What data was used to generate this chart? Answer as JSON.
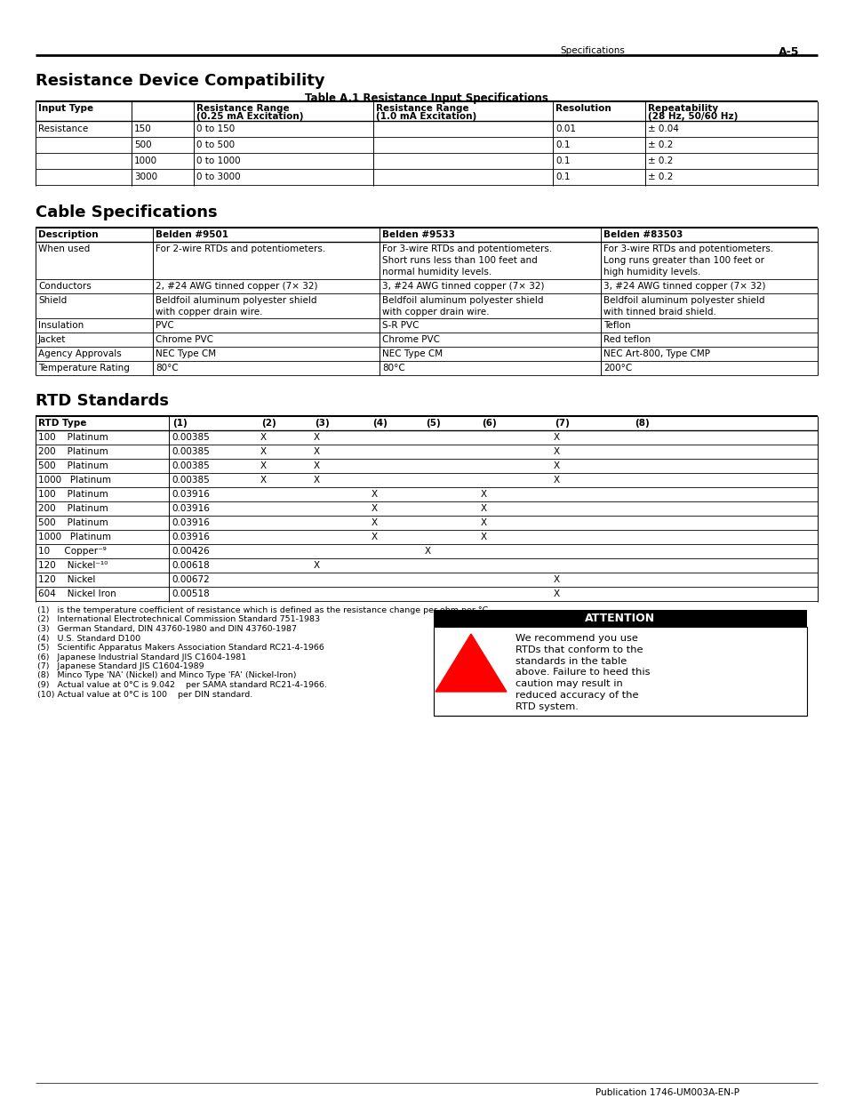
{
  "page_header_left": "Specifications",
  "page_header_right": "A-5",
  "section1_title": "Resistance Device Compatibility",
  "table1_title": "Table A.1 Resistance Input Specifications",
  "section2_title": "Cable Specifications",
  "section3_title": "RTD Standards",
  "table1_headers_row1": [
    "Input Type",
    "",
    "Resistance Range",
    "Resistance Range",
    "Resolution",
    "Repeatability"
  ],
  "table1_headers_row2": [
    "",
    "",
    "(0.25 mA Excitation)",
    "(1.0 mA Excitation)",
    "",
    "(28 Hz, 50/60 Hz)"
  ],
  "table1_rows": [
    [
      "Resistance",
      "150",
      "0 to 150",
      "",
      "0.01",
      "± 0.04"
    ],
    [
      "",
      "500",
      "0 to 500",
      "",
      "0.1",
      "± 0.2"
    ],
    [
      "",
      "1000",
      "0 to 1000",
      "",
      "0.1",
      "± 0.2"
    ],
    [
      "",
      "3000",
      "0 to 3000",
      "",
      "0.1",
      "± 0.2"
    ]
  ],
  "table2_headers": [
    "Description",
    "Belden #9501",
    "Belden #9533",
    "Belden #83503"
  ],
  "table2_rows": [
    [
      "When used",
      "For 2-wire RTDs and potentiometers.",
      "For 3-wire RTDs and potentiometers.\nShort runs less than 100 feet and\nnormal humidity levels.",
      "For 3-wire RTDs and potentiometers.\nLong runs greater than 100 feet or\nhigh humidity levels."
    ],
    [
      "Conductors",
      "2, #24 AWG tinned copper (7× 32)",
      "3, #24 AWG tinned copper (7× 32)",
      "3, #24 AWG tinned copper (7× 32)"
    ],
    [
      "Shield",
      "Beldfoil aluminum polyester shield\nwith copper drain wire.",
      "Beldfoil aluminum polyester shield\nwith copper drain wire.",
      "Beldfoil aluminum polyester shield\nwith tinned braid shield."
    ],
    [
      "Insulation",
      "PVC",
      "S-R PVC",
      "Teflon"
    ],
    [
      "Jacket",
      "Chrome PVC",
      "Chrome PVC",
      "Red teflon"
    ],
    [
      "Agency Approvals",
      "NEC Type CM",
      "NEC Type CM",
      "NEC Art-800, Type CMP"
    ],
    [
      "Temperature Rating",
      "80°C",
      "80°C",
      "200°C"
    ]
  ],
  "table3_headers": [
    "RTD Type",
    "(1)",
    "(2)",
    "(3)",
    "(4)",
    "(5)",
    "(6)",
    "(7)",
    "(8)"
  ],
  "table3_rows": [
    [
      "100    Platinum",
      "0.00385",
      "X",
      "X",
      "",
      "",
      "",
      "X",
      ""
    ],
    [
      "200    Platinum",
      "0.00385",
      "X",
      "X",
      "",
      "",
      "",
      "X",
      ""
    ],
    [
      "500    Platinum",
      "0.00385",
      "X",
      "X",
      "",
      "",
      "",
      "X",
      ""
    ],
    [
      "1000   Platinum",
      "0.00385",
      "X",
      "X",
      "",
      "",
      "",
      "X",
      ""
    ],
    [
      "100    Platinum",
      "0.03916",
      "",
      "",
      "X",
      "",
      "X",
      "",
      ""
    ],
    [
      "200    Platinum",
      "0.03916",
      "",
      "",
      "X",
      "",
      "X",
      "",
      ""
    ],
    [
      "500    Platinum",
      "0.03916",
      "",
      "",
      "X",
      "",
      "X",
      "",
      ""
    ],
    [
      "1000   Platinum",
      "0.03916",
      "",
      "",
      "X",
      "",
      "X",
      "",
      ""
    ],
    [
      "10     Copper⁻⁹",
      "0.00426",
      "",
      "",
      "",
      "X",
      "",
      "",
      ""
    ],
    [
      "120    Nickel⁻¹⁰",
      "0.00618",
      "",
      "X",
      "",
      "",
      "",
      "",
      ""
    ],
    [
      "120    Nickel",
      "0.00672",
      "",
      "",
      "",
      "",
      "",
      "X",
      ""
    ],
    [
      "604    Nickel Iron",
      "0.00518",
      "",
      "",
      "",
      "",
      "",
      "X",
      ""
    ]
  ],
  "footnotes": [
    "(1)   is the temperature coefficient of resistance which is defined as the resistance change per ohm per °C.",
    "(2)   International Electrotechnical Commission Standard 751-1983",
    "(3)   German Standard, DIN 43760-1980 and DIN 43760-1987",
    "(4)   U.S. Standard D100",
    "(5)   Scientific Apparatus Makers Association Standard RC21-4-1966",
    "(6)   Japanese Industrial Standard JIS C1604-1981",
    "(7)   Japanese Standard JIS C1604-1989",
    "(8)   Minco Type 'NA' (Nickel) and Minco Type 'FA' (Nickel-Iron)",
    "(9)   Actual value at 0°C is 9.042    per SAMA standard RC21-4-1966.",
    "(10) Actual value at 0°C is 100    per DIN standard."
  ],
  "attention_text": "We recommend you use\nRTDs that conform to the\nstandards in the table\nabove. Failure to heed this\ncaution may result in\nreduced accuracy of the\nRTD system.",
  "footer_text": "Publication 1746-UM003A-EN-P",
  "bg_color": "#ffffff",
  "text_color": "#000000",
  "line_color": "#000000"
}
